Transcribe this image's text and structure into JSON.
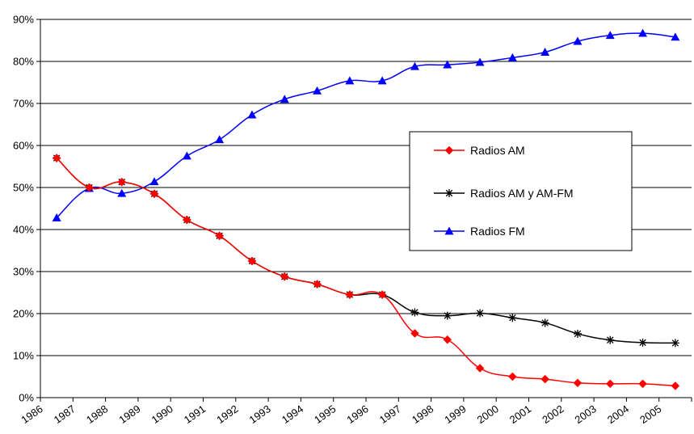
{
  "chart_data": {
    "type": "line",
    "title": "",
    "xlabel": "",
    "ylabel": "",
    "ylim": [
      0,
      90
    ],
    "y_ticks": [
      "0%",
      "10%",
      "20%",
      "30%",
      "40%",
      "50%",
      "60%",
      "70%",
      "80%",
      "90%"
    ],
    "categories": [
      "1986",
      "1987",
      "1988",
      "1989",
      "1990",
      "1991",
      "1992",
      "1993",
      "1994",
      "1995",
      "1996",
      "1997",
      "1998",
      "1999",
      "2000",
      "2001",
      "2002",
      "2003",
      "2004",
      "2005"
    ],
    "grid": true,
    "legend_position": "right",
    "series": [
      {
        "name": "Radios AM",
        "color": "#ff0000",
        "marker": "diamond",
        "values": [
          57,
          50,
          51.3,
          48.5,
          42.3,
          38.5,
          32.5,
          28.8,
          27,
          24.5,
          24.5,
          15.3,
          13.8,
          7,
          5,
          4.4,
          3.5,
          3.3,
          3.3,
          2.8
        ]
      },
      {
        "name": "Radios AM y AM-FM",
        "color": "#000000",
        "marker": "star",
        "values": [
          57,
          50,
          51.3,
          48.5,
          42.3,
          38.5,
          32.5,
          28.8,
          27,
          24.5,
          24.5,
          20.3,
          19.5,
          20.1,
          19,
          17.8,
          15.2,
          13.7,
          13.1,
          13
        ]
      },
      {
        "name": "Radios FM",
        "color": "#0000ff",
        "marker": "triangle",
        "values": [
          42.8,
          49.8,
          48.6,
          51.4,
          57.5,
          61.4,
          67.3,
          71,
          73,
          75.4,
          75.4,
          78.8,
          79.2,
          79.8,
          80.9,
          82.2,
          84.8,
          86.2,
          86.7,
          85.8
        ]
      }
    ]
  }
}
